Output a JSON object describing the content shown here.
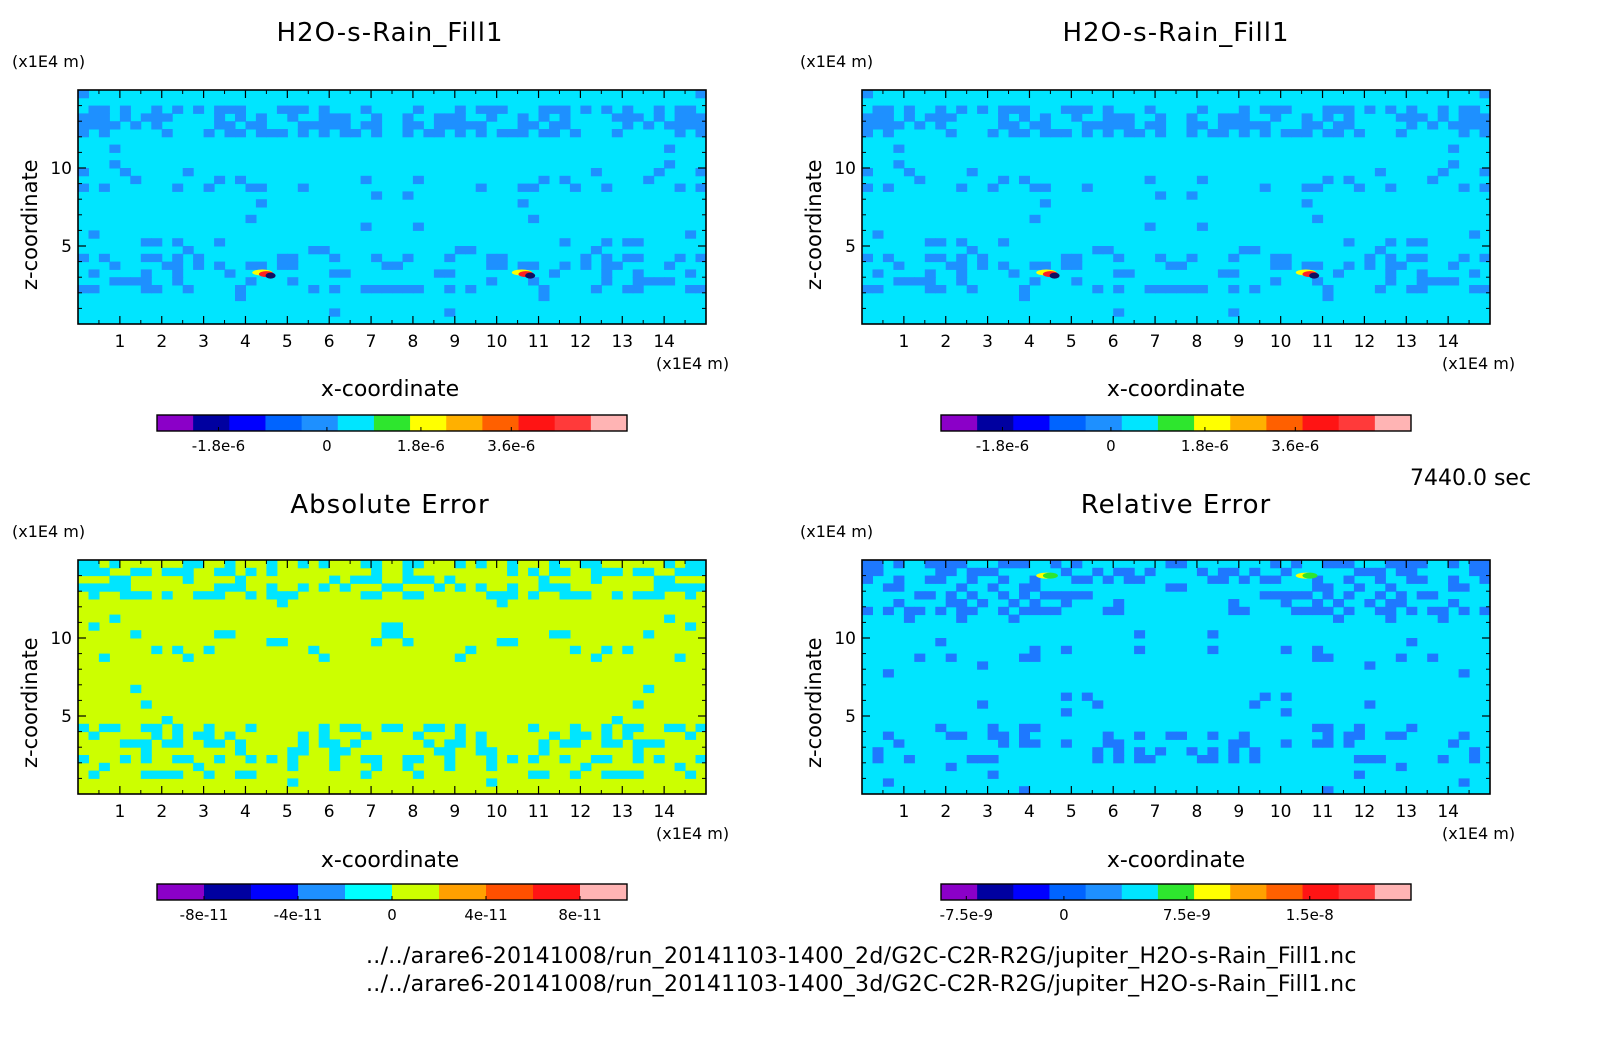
{
  "panels": [
    {
      "title": "H2O-s-Rain_Fill1",
      "xlabel": "x-coordinate",
      "ylabel": "z-coordinate",
      "y_unit": "(x1E4 m)",
      "x_unit": "(x1E4 m)",
      "background_color": "#00e5ff",
      "pattern_color": "#1e90ff",
      "hotspots": [
        "#ffff00",
        "#ff2020",
        "#101060"
      ],
      "colorbar": {
        "colors": [
          "#8b00c8",
          "#0000a0",
          "#0000ff",
          "#0064ff",
          "#1e90ff",
          "#00e5ff",
          "#2ee62e",
          "#ffff00",
          "#ffb000",
          "#ff6000",
          "#ff1414",
          "#ff3a3a",
          "#ffb4b4"
        ],
        "tick_labels": [
          "-1.8e-6",
          "0",
          "1.8e-6",
          "3.6e-6"
        ]
      }
    },
    {
      "title": "H2O-s-Rain_Fill1",
      "xlabel": "x-coordinate",
      "ylabel": "z-coordinate",
      "y_unit": "(x1E4 m)",
      "x_unit": "(x1E4 m)",
      "background_color": "#00e5ff",
      "pattern_color": "#1e90ff",
      "hotspots": [
        "#ffff00",
        "#ff2020",
        "#101060"
      ],
      "colorbar": {
        "colors": [
          "#8b00c8",
          "#0000a0",
          "#0000ff",
          "#0064ff",
          "#1e90ff",
          "#00e5ff",
          "#2ee62e",
          "#ffff00",
          "#ffb000",
          "#ff6000",
          "#ff1414",
          "#ff3a3a",
          "#ffb4b4"
        ],
        "tick_labels": [
          "-1.8e-6",
          "0",
          "1.8e-6",
          "3.6e-6"
        ]
      }
    },
    {
      "title": "Absolute Error",
      "xlabel": "x-coordinate",
      "ylabel": "z-coordinate",
      "y_unit": "(x1E4 m)",
      "x_unit": "(x1E4 m)",
      "background_color": "#ccff00",
      "pattern_color": "#00e5ff",
      "hotspots": [],
      "colorbar": {
        "colors": [
          "#8b00c8",
          "#0000a0",
          "#0000ff",
          "#1e90ff",
          "#00ffff",
          "#ccff00",
          "#ffa000",
          "#ff5000",
          "#ff1414",
          "#ffb4b4"
        ],
        "tick_labels": [
          "-8e-11",
          "-4e-11",
          "0",
          "4e-11",
          "8e-11"
        ]
      }
    },
    {
      "title": "Relative Error",
      "xlabel": "x-coordinate",
      "ylabel": "z-coordinate",
      "y_unit": "(x1E4 m)",
      "x_unit": "(x1E4 m)",
      "background_color": "#00e5ff",
      "pattern_color": "#1e78ff",
      "hotspots": [
        "#ffff00",
        "#2ee62e"
      ],
      "colorbar": {
        "colors": [
          "#8b00c8",
          "#0000a0",
          "#0000ff",
          "#0064ff",
          "#1e90ff",
          "#00e5ff",
          "#2ee62e",
          "#ffff00",
          "#ffa000",
          "#ff6000",
          "#ff1414",
          "#ff3a3a",
          "#ffb4b4"
        ],
        "tick_labels": [
          "-7.5e-9",
          "0",
          "7.5e-9",
          "1.5e-8"
        ]
      }
    }
  ],
  "time_label": "7440.0 sec",
  "file_lines": [
    "../../arare6-20141008/run_20141103-1400_2d/G2C-C2R-R2G/jupiter_H2O-s-Rain_Fill1.nc",
    "../../arare6-20141008/run_20141103-1400_3d/G2C-C2R-R2G/jupiter_H2O-s-Rain_Fill1.nc"
  ],
  "chart_data": [
    {
      "type": "heatmap",
      "title": "H2O-s-Rain_Fill1",
      "xlabel": "x-coordinate",
      "ylabel": "z-coordinate",
      "x_ticks": [
        1,
        2,
        3,
        4,
        5,
        6,
        7,
        8,
        9,
        10,
        11,
        12,
        13,
        14
      ],
      "y_ticks": [
        5,
        10
      ],
      "xlim": [
        0,
        15
      ],
      "ylim": [
        0,
        15
      ],
      "x_unit": "(x1E4 m)",
      "y_unit": "(x1E4 m)",
      "colorbar_ticks": [
        "-1.8e-6",
        "0",
        "1.8e-6",
        "3.6e-6"
      ]
    },
    {
      "type": "heatmap",
      "title": "H2O-s-Rain_Fill1",
      "xlabel": "x-coordinate",
      "ylabel": "z-coordinate",
      "x_ticks": [
        1,
        2,
        3,
        4,
        5,
        6,
        7,
        8,
        9,
        10,
        11,
        12,
        13,
        14
      ],
      "y_ticks": [
        5,
        10
      ],
      "xlim": [
        0,
        15
      ],
      "ylim": [
        0,
        15
      ],
      "x_unit": "(x1E4 m)",
      "y_unit": "(x1E4 m)",
      "colorbar_ticks": [
        "-1.8e-6",
        "0",
        "1.8e-6",
        "3.6e-6"
      ]
    },
    {
      "type": "heatmap",
      "title": "Absolute Error",
      "xlabel": "x-coordinate",
      "ylabel": "z-coordinate",
      "x_ticks": [
        1,
        2,
        3,
        4,
        5,
        6,
        7,
        8,
        9,
        10,
        11,
        12,
        13,
        14
      ],
      "y_ticks": [
        5,
        10
      ],
      "xlim": [
        0,
        15
      ],
      "ylim": [
        0,
        15
      ],
      "x_unit": "(x1E4 m)",
      "y_unit": "(x1E4 m)",
      "colorbar_ticks": [
        "-8e-11",
        "-4e-11",
        "0",
        "4e-11",
        "8e-11"
      ]
    },
    {
      "type": "heatmap",
      "title": "Relative Error",
      "xlabel": "x-coordinate",
      "ylabel": "z-coordinate",
      "x_ticks": [
        1,
        2,
        3,
        4,
        5,
        6,
        7,
        8,
        9,
        10,
        11,
        12,
        13,
        14
      ],
      "y_ticks": [
        5,
        10
      ],
      "xlim": [
        0,
        15
      ],
      "ylim": [
        0,
        15
      ],
      "x_unit": "(x1E4 m)",
      "y_unit": "(x1E4 m)",
      "colorbar_ticks": [
        "-7.5e-9",
        "0",
        "7.5e-9",
        "1.5e-8"
      ]
    }
  ]
}
